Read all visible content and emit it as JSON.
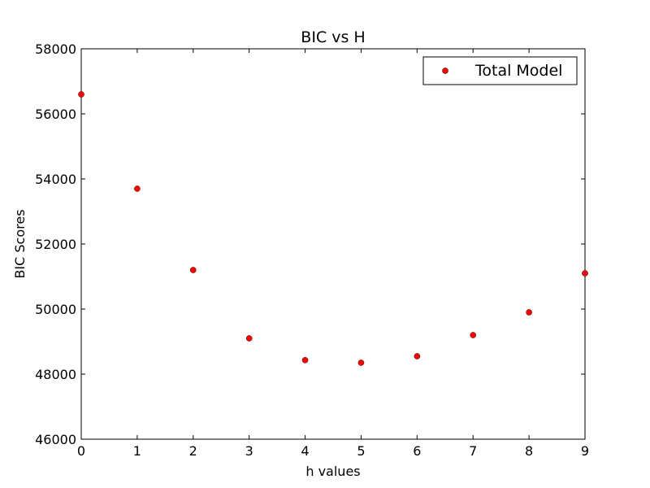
{
  "chart_data": {
    "type": "scatter",
    "title": "BIC vs H",
    "xlabel": "h values",
    "ylabel": "BIC Scores",
    "xlim": [
      0,
      9
    ],
    "ylim": [
      46000,
      58000
    ],
    "xticks": [
      0,
      1,
      2,
      3,
      4,
      5,
      6,
      7,
      8,
      9
    ],
    "yticks": [
      46000,
      48000,
      50000,
      52000,
      54000,
      56000,
      58000
    ],
    "grid": false,
    "legend_position": "top-right",
    "series": [
      {
        "name": "Total Model",
        "color": "#ff0000",
        "marker": "circle",
        "x": [
          0,
          1,
          2,
          3,
          4,
          5,
          6,
          7,
          8,
          9
        ],
        "y": [
          56600,
          53700,
          51200,
          49100,
          48430,
          48350,
          48550,
          49200,
          49900,
          51100
        ]
      }
    ]
  }
}
